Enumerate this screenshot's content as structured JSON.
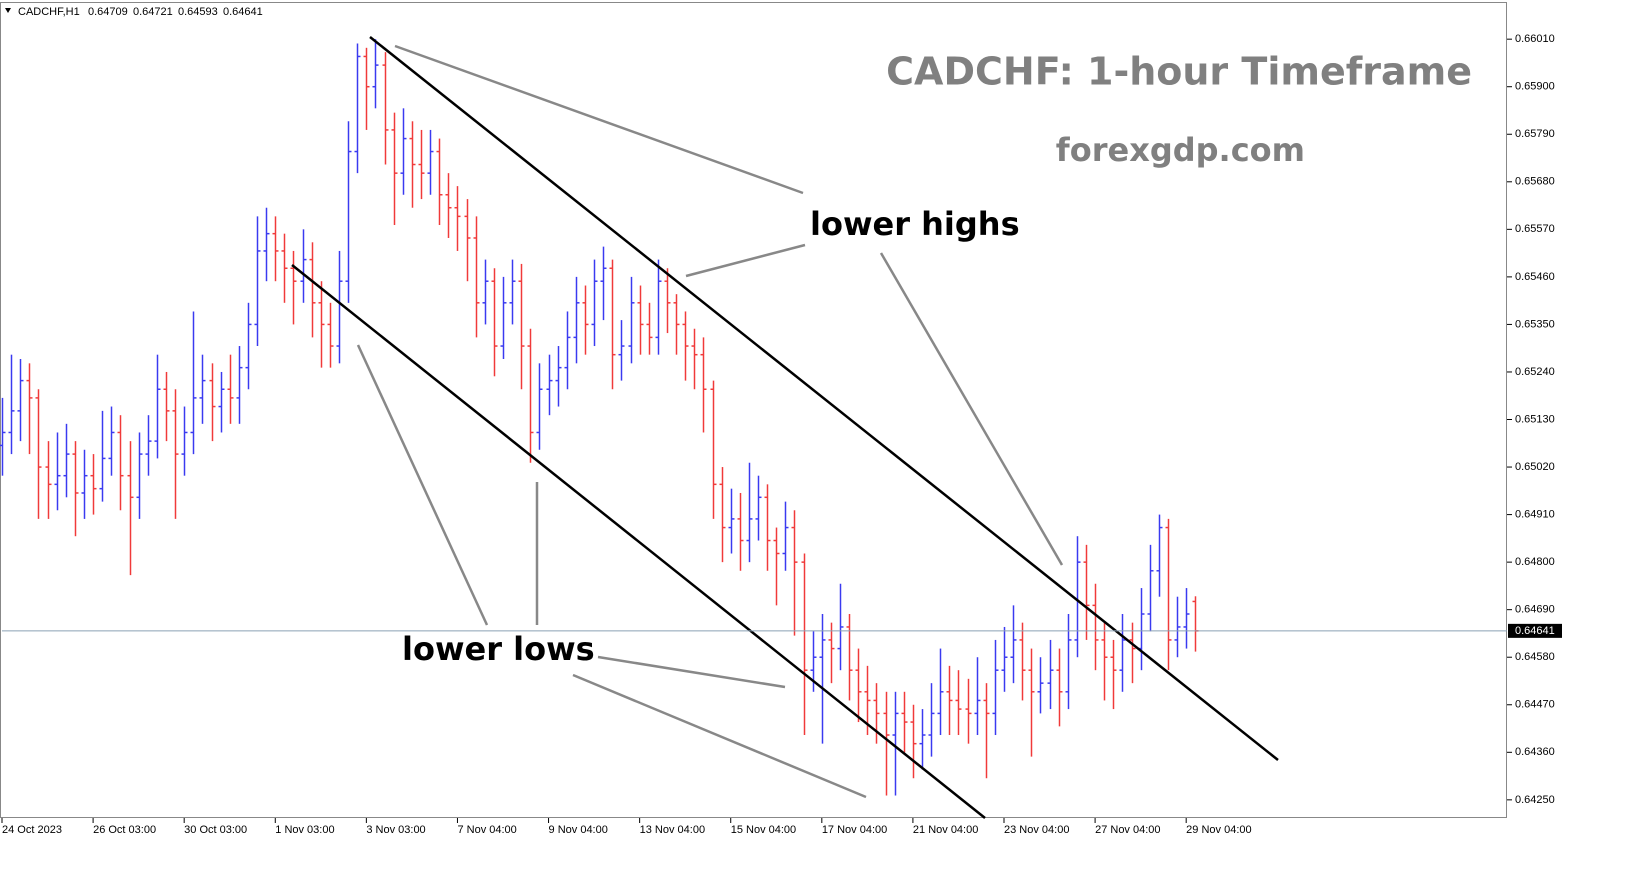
{
  "chart_data": {
    "type": "ohlc",
    "symbol": "CADCHF,H1",
    "title": "CADCHF: 1-hour Timeframe",
    "subtitle": "forexgdp.com",
    "annotations": [
      "lower highs",
      "lower lows"
    ],
    "up_color": "#3a3af0",
    "down_color": "#f03a3a",
    "current_line_color": "#8aa0b4",
    "xlim": [
      0,
      165
    ],
    "xticks": [
      {
        "value": 0,
        "label": "24 Oct 2023"
      },
      {
        "value": 10,
        "label": "26 Oct 03:00"
      },
      {
        "value": 20,
        "label": "30 Oct 03:00"
      },
      {
        "value": 30,
        "label": "1 Nov 03:00"
      },
      {
        "value": 40,
        "label": "3 Nov 03:00"
      },
      {
        "value": 50,
        "label": "7 Nov 04:00"
      },
      {
        "value": 60,
        "label": "9 Nov 04:00"
      },
      {
        "value": 70,
        "label": "13 Nov 04:00"
      },
      {
        "value": 80,
        "label": "15 Nov 04:00"
      },
      {
        "value": 90,
        "label": "17 Nov 04:00"
      },
      {
        "value": 100,
        "label": "21 Nov 04:00"
      },
      {
        "value": 110,
        "label": "23 Nov 04:00"
      },
      {
        "value": 120,
        "label": "27 Nov 04:00"
      },
      {
        "value": 130,
        "label": "29 Nov 04:00"
      }
    ],
    "ylim": [
      0.64208,
      0.66096
    ],
    "yticks": [
      {
        "value": 0.6601,
        "label": "0.66010"
      },
      {
        "value": 0.659,
        "label": "0.65900"
      },
      {
        "value": 0.6579,
        "label": "0.65790"
      },
      {
        "value": 0.6568,
        "label": "0.65680"
      },
      {
        "value": 0.6557,
        "label": "0.65570"
      },
      {
        "value": 0.6546,
        "label": "0.65460"
      },
      {
        "value": 0.6535,
        "label": "0.65350"
      },
      {
        "value": 0.6524,
        "label": "0.65240"
      },
      {
        "value": 0.6513,
        "label": "0.65130"
      },
      {
        "value": 0.6502,
        "label": "0.65020"
      },
      {
        "value": 0.6491,
        "label": "0.64910"
      },
      {
        "value": 0.648,
        "label": "0.64800"
      },
      {
        "value": 0.6469,
        "label": "0.64690"
      },
      {
        "value": 0.6458,
        "label": "0.64580"
      },
      {
        "value": 0.6447,
        "label": "0.64470"
      },
      {
        "value": 0.6436,
        "label": "0.64360"
      },
      {
        "value": 0.6425,
        "label": "0.64250"
      }
    ],
    "open": [
      0.6507,
      0.651,
      0.6515,
      0.6522,
      0.6518,
      0.6502,
      0.6498,
      0.65,
      0.6505,
      0.6496,
      0.65,
      0.6497,
      0.6504,
      0.651,
      0.65,
      0.6495,
      0.6505,
      0.6508,
      0.652,
      0.6515,
      0.6505,
      0.651,
      0.6518,
      0.6522,
      0.6516,
      0.652,
      0.6518,
      0.6525,
      0.6535,
      0.6552,
      0.6556,
      0.6552,
      0.6548,
      0.6545,
      0.655,
      0.654,
      0.6535,
      0.653,
      0.6545,
      0.6575,
      0.6597,
      0.659,
      0.6595,
      0.658,
      0.657,
      0.6578,
      0.6572,
      0.657,
      0.6575,
      0.6565,
      0.6562,
      0.656,
      0.6555,
      0.654,
      0.6545,
      0.653,
      0.654,
      0.6545,
      0.653,
      0.651,
      0.652,
      0.6522,
      0.6525,
      0.6532,
      0.654,
      0.6535,
      0.6545,
      0.6548,
      0.6528,
      0.653,
      0.654,
      0.6535,
      0.6532,
      0.6545,
      0.654,
      0.6535,
      0.653,
      0.6528,
      0.652,
      0.6498,
      0.6488,
      0.649,
      0.6485,
      0.649,
      0.6495,
      0.6485,
      0.6482,
      0.6488,
      0.648,
      0.6455,
      0.6458,
      0.6462,
      0.646,
      0.6465,
      0.6455,
      0.645,
      0.6448,
      0.6445,
      0.644,
      0.6445,
      0.6443,
      0.6438,
      0.644,
      0.6445,
      0.645,
      0.6448,
      0.6446,
      0.6445,
      0.6448,
      0.6445,
      0.6455,
      0.6458,
      0.6462,
      0.6455,
      0.645,
      0.6452,
      0.6455,
      0.645,
      0.6462,
      0.648,
      0.647,
      0.6462,
      0.6458,
      0.6455,
      0.6462,
      0.646,
      0.6468,
      0.6478,
      0.6488,
      0.6462,
      0.6465,
      0.64709
    ],
    "high": [
      0.6518,
      0.6528,
      0.6527,
      0.6526,
      0.652,
      0.6508,
      0.651,
      0.6512,
      0.6508,
      0.6506,
      0.6505,
      0.6515,
      0.6516,
      0.6514,
      0.6508,
      0.651,
      0.6514,
      0.6528,
      0.6524,
      0.652,
      0.6516,
      0.6538,
      0.6528,
      0.6526,
      0.6524,
      0.6528,
      0.653,
      0.654,
      0.656,
      0.6562,
      0.656,
      0.6556,
      0.6552,
      0.6557,
      0.6554,
      0.6545,
      0.654,
      0.6552,
      0.6582,
      0.66,
      0.6599,
      0.6601,
      0.6598,
      0.6584,
      0.6585,
      0.6582,
      0.658,
      0.658,
      0.6578,
      0.657,
      0.6567,
      0.6564,
      0.656,
      0.655,
      0.6548,
      0.6546,
      0.655,
      0.6549,
      0.6534,
      0.6526,
      0.6528,
      0.653,
      0.6538,
      0.6546,
      0.6544,
      0.655,
      0.6553,
      0.655,
      0.6536,
      0.6546,
      0.6544,
      0.654,
      0.655,
      0.6548,
      0.6542,
      0.6538,
      0.6534,
      0.6532,
      0.6522,
      0.6502,
      0.6497,
      0.6496,
      0.6503,
      0.65,
      0.6498,
      0.6488,
      0.6494,
      0.6492,
      0.6482,
      0.6464,
      0.6468,
      0.6466,
      0.6475,
      0.6468,
      0.646,
      0.6456,
      0.6452,
      0.645,
      0.645,
      0.645,
      0.6447,
      0.6446,
      0.6452,
      0.646,
      0.6456,
      0.6455,
      0.6453,
      0.6458,
      0.6452,
      0.6462,
      0.6465,
      0.647,
      0.6466,
      0.646,
      0.6458,
      0.6462,
      0.646,
      0.6468,
      0.6486,
      0.6484,
      0.6475,
      0.6466,
      0.6462,
      0.6468,
      0.6466,
      0.6474,
      0.6484,
      0.6491,
      0.649,
      0.6472,
      0.6474,
      0.64721
    ],
    "low": [
      0.65,
      0.6505,
      0.6508,
      0.6505,
      0.649,
      0.649,
      0.6492,
      0.6495,
      0.6486,
      0.649,
      0.6491,
      0.6494,
      0.65,
      0.6492,
      0.6477,
      0.649,
      0.65,
      0.6504,
      0.6508,
      0.649,
      0.65,
      0.6505,
      0.6512,
      0.6508,
      0.651,
      0.6512,
      0.6512,
      0.652,
      0.653,
      0.6545,
      0.6545,
      0.654,
      0.6535,
      0.654,
      0.6532,
      0.6525,
      0.6525,
      0.6526,
      0.654,
      0.657,
      0.658,
      0.6585,
      0.6572,
      0.6558,
      0.6565,
      0.6562,
      0.6564,
      0.6565,
      0.6558,
      0.6555,
      0.6552,
      0.6545,
      0.6532,
      0.6535,
      0.6523,
      0.6527,
      0.6535,
      0.652,
      0.6503,
      0.6506,
      0.6514,
      0.6516,
      0.652,
      0.6526,
      0.6528,
      0.653,
      0.6536,
      0.652,
      0.6522,
      0.6526,
      0.6528,
      0.6528,
      0.6528,
      0.6533,
      0.6528,
      0.6522,
      0.652,
      0.651,
      0.649,
      0.648,
      0.6482,
      0.6478,
      0.648,
      0.6485,
      0.6478,
      0.647,
      0.6478,
      0.6463,
      0.644,
      0.645,
      0.6438,
      0.6452,
      0.6455,
      0.6448,
      0.6443,
      0.644,
      0.6438,
      0.6426,
      0.6426,
      0.6436,
      0.643,
      0.6432,
      0.6435,
      0.644,
      0.644,
      0.644,
      0.6438,
      0.644,
      0.643,
      0.644,
      0.645,
      0.6452,
      0.6448,
      0.6435,
      0.6445,
      0.6446,
      0.6442,
      0.6446,
      0.6458,
      0.6462,
      0.6455,
      0.6448,
      0.6446,
      0.645,
      0.6452,
      0.6455,
      0.6464,
      0.6472,
      0.6455,
      0.6458,
      0.646,
      0.64593
    ],
    "close": [
      0.651,
      0.6515,
      0.6522,
      0.6518,
      0.6502,
      0.6498,
      0.65,
      0.6505,
      0.6496,
      0.65,
      0.6497,
      0.6504,
      0.651,
      0.65,
      0.6495,
      0.6505,
      0.6508,
      0.652,
      0.6515,
      0.6505,
      0.651,
      0.6518,
      0.6522,
      0.6516,
      0.652,
      0.6518,
      0.6525,
      0.6535,
      0.6552,
      0.6556,
      0.6552,
      0.6548,
      0.6545,
      0.655,
      0.654,
      0.6535,
      0.653,
      0.6545,
      0.6575,
      0.6597,
      0.659,
      0.6595,
      0.658,
      0.657,
      0.6578,
      0.6572,
      0.657,
      0.6575,
      0.6565,
      0.6562,
      0.656,
      0.6555,
      0.654,
      0.6545,
      0.653,
      0.654,
      0.6545,
      0.653,
      0.651,
      0.652,
      0.6522,
      0.6525,
      0.6532,
      0.654,
      0.6535,
      0.6545,
      0.6548,
      0.6528,
      0.653,
      0.654,
      0.6535,
      0.6532,
      0.6545,
      0.654,
      0.6535,
      0.653,
      0.6528,
      0.652,
      0.6498,
      0.6488,
      0.649,
      0.6485,
      0.649,
      0.6495,
      0.6485,
      0.6482,
      0.6488,
      0.648,
      0.6455,
      0.6458,
      0.6462,
      0.646,
      0.6465,
      0.6455,
      0.645,
      0.6448,
      0.6445,
      0.644,
      0.6445,
      0.6443,
      0.6438,
      0.644,
      0.6445,
      0.645,
      0.6448,
      0.6446,
      0.6445,
      0.6448,
      0.6445,
      0.6455,
      0.6458,
      0.6462,
      0.6455,
      0.645,
      0.6452,
      0.6455,
      0.645,
      0.6462,
      0.648,
      0.647,
      0.6462,
      0.6458,
      0.6455,
      0.6462,
      0.646,
      0.6468,
      0.6478,
      0.6488,
      0.6462,
      0.6465,
      0.6468,
      0.64641
    ]
  }
}
